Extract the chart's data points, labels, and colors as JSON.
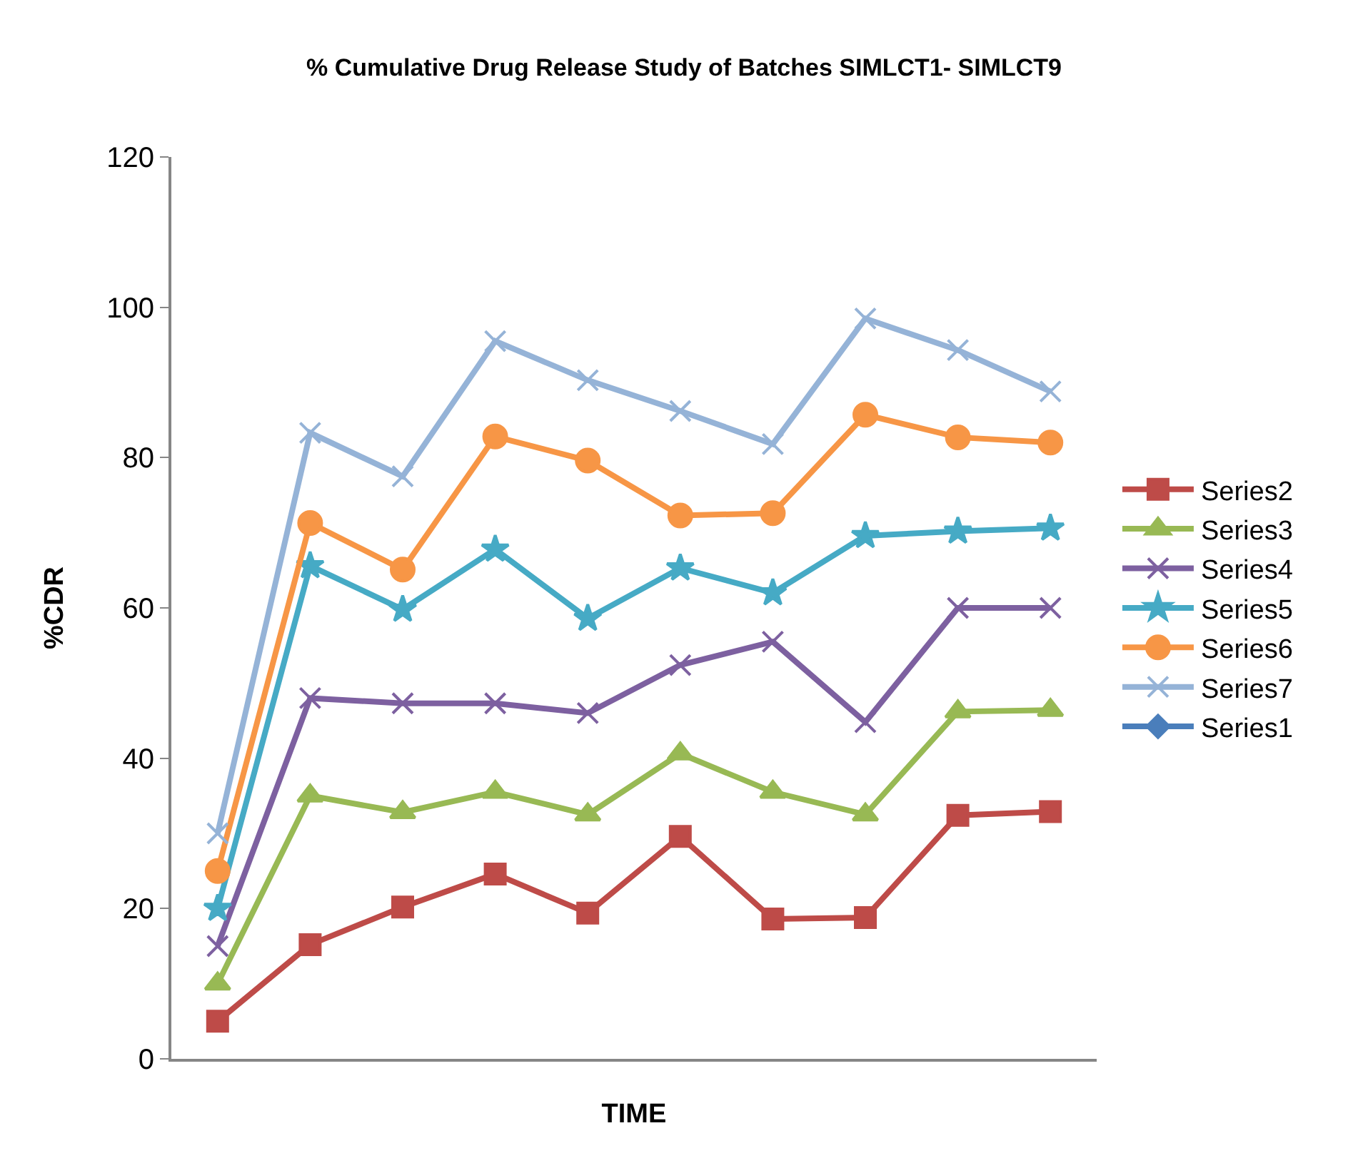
{
  "chart_data": {
    "type": "line",
    "title": "% Cumulative Drug Release Study of Batches SIMLCT1- SIMLCT9",
    "xlabel": "TIME",
    "ylabel": "%CDR",
    "categories": [
      null,
      null,
      null,
      null,
      null,
      null,
      null,
      null,
      null,
      null
    ],
    "ylim": [
      0,
      120
    ],
    "yticks": [
      0,
      20,
      40,
      60,
      80,
      100,
      120
    ],
    "legend": "right",
    "tick_labels": "y",
    "series": [
      {
        "name": "Series2",
        "color": "#be4b48",
        "marker": "square",
        "values": [
          5,
          15.2,
          20.2,
          24.6,
          19.4,
          29.6,
          18.6,
          18.8,
          32.4,
          32.9
        ]
      },
      {
        "name": "Series3",
        "color": "#98b954",
        "marker": "triangle",
        "values": [
          10,
          35,
          32.8,
          35.5,
          32.5,
          40.6,
          35.5,
          32.5,
          46.2,
          46.4
        ]
      },
      {
        "name": "Series4",
        "color": "#7d60a0",
        "marker": "cross",
        "values": [
          15,
          48,
          47.3,
          47.3,
          46,
          52.4,
          55.5,
          44.8,
          60,
          60
        ]
      },
      {
        "name": "Series5",
        "color": "#46aac5",
        "marker": "star",
        "values": [
          20,
          65.6,
          59.8,
          67.8,
          58.6,
          65.3,
          62,
          69.6,
          70.2,
          70.6
        ]
      },
      {
        "name": "Series6",
        "color": "#f79646",
        "marker": "circle",
        "values": [
          25,
          71.3,
          65.1,
          82.8,
          79.6,
          72.3,
          72.6,
          85.7,
          82.7,
          82
        ]
      },
      {
        "name": "Series7",
        "color": "#95b3d7",
        "marker": "cross",
        "values": [
          30,
          83.3,
          77.5,
          95.5,
          90.3,
          86.2,
          81.8,
          98.5,
          94.3,
          88.8
        ]
      },
      {
        "name": "Series1",
        "color": "#4a7ebb",
        "marker": "diamond",
        "values": [
          null,
          null,
          null,
          null,
          null,
          null,
          null,
          null,
          null,
          null
        ]
      }
    ]
  }
}
